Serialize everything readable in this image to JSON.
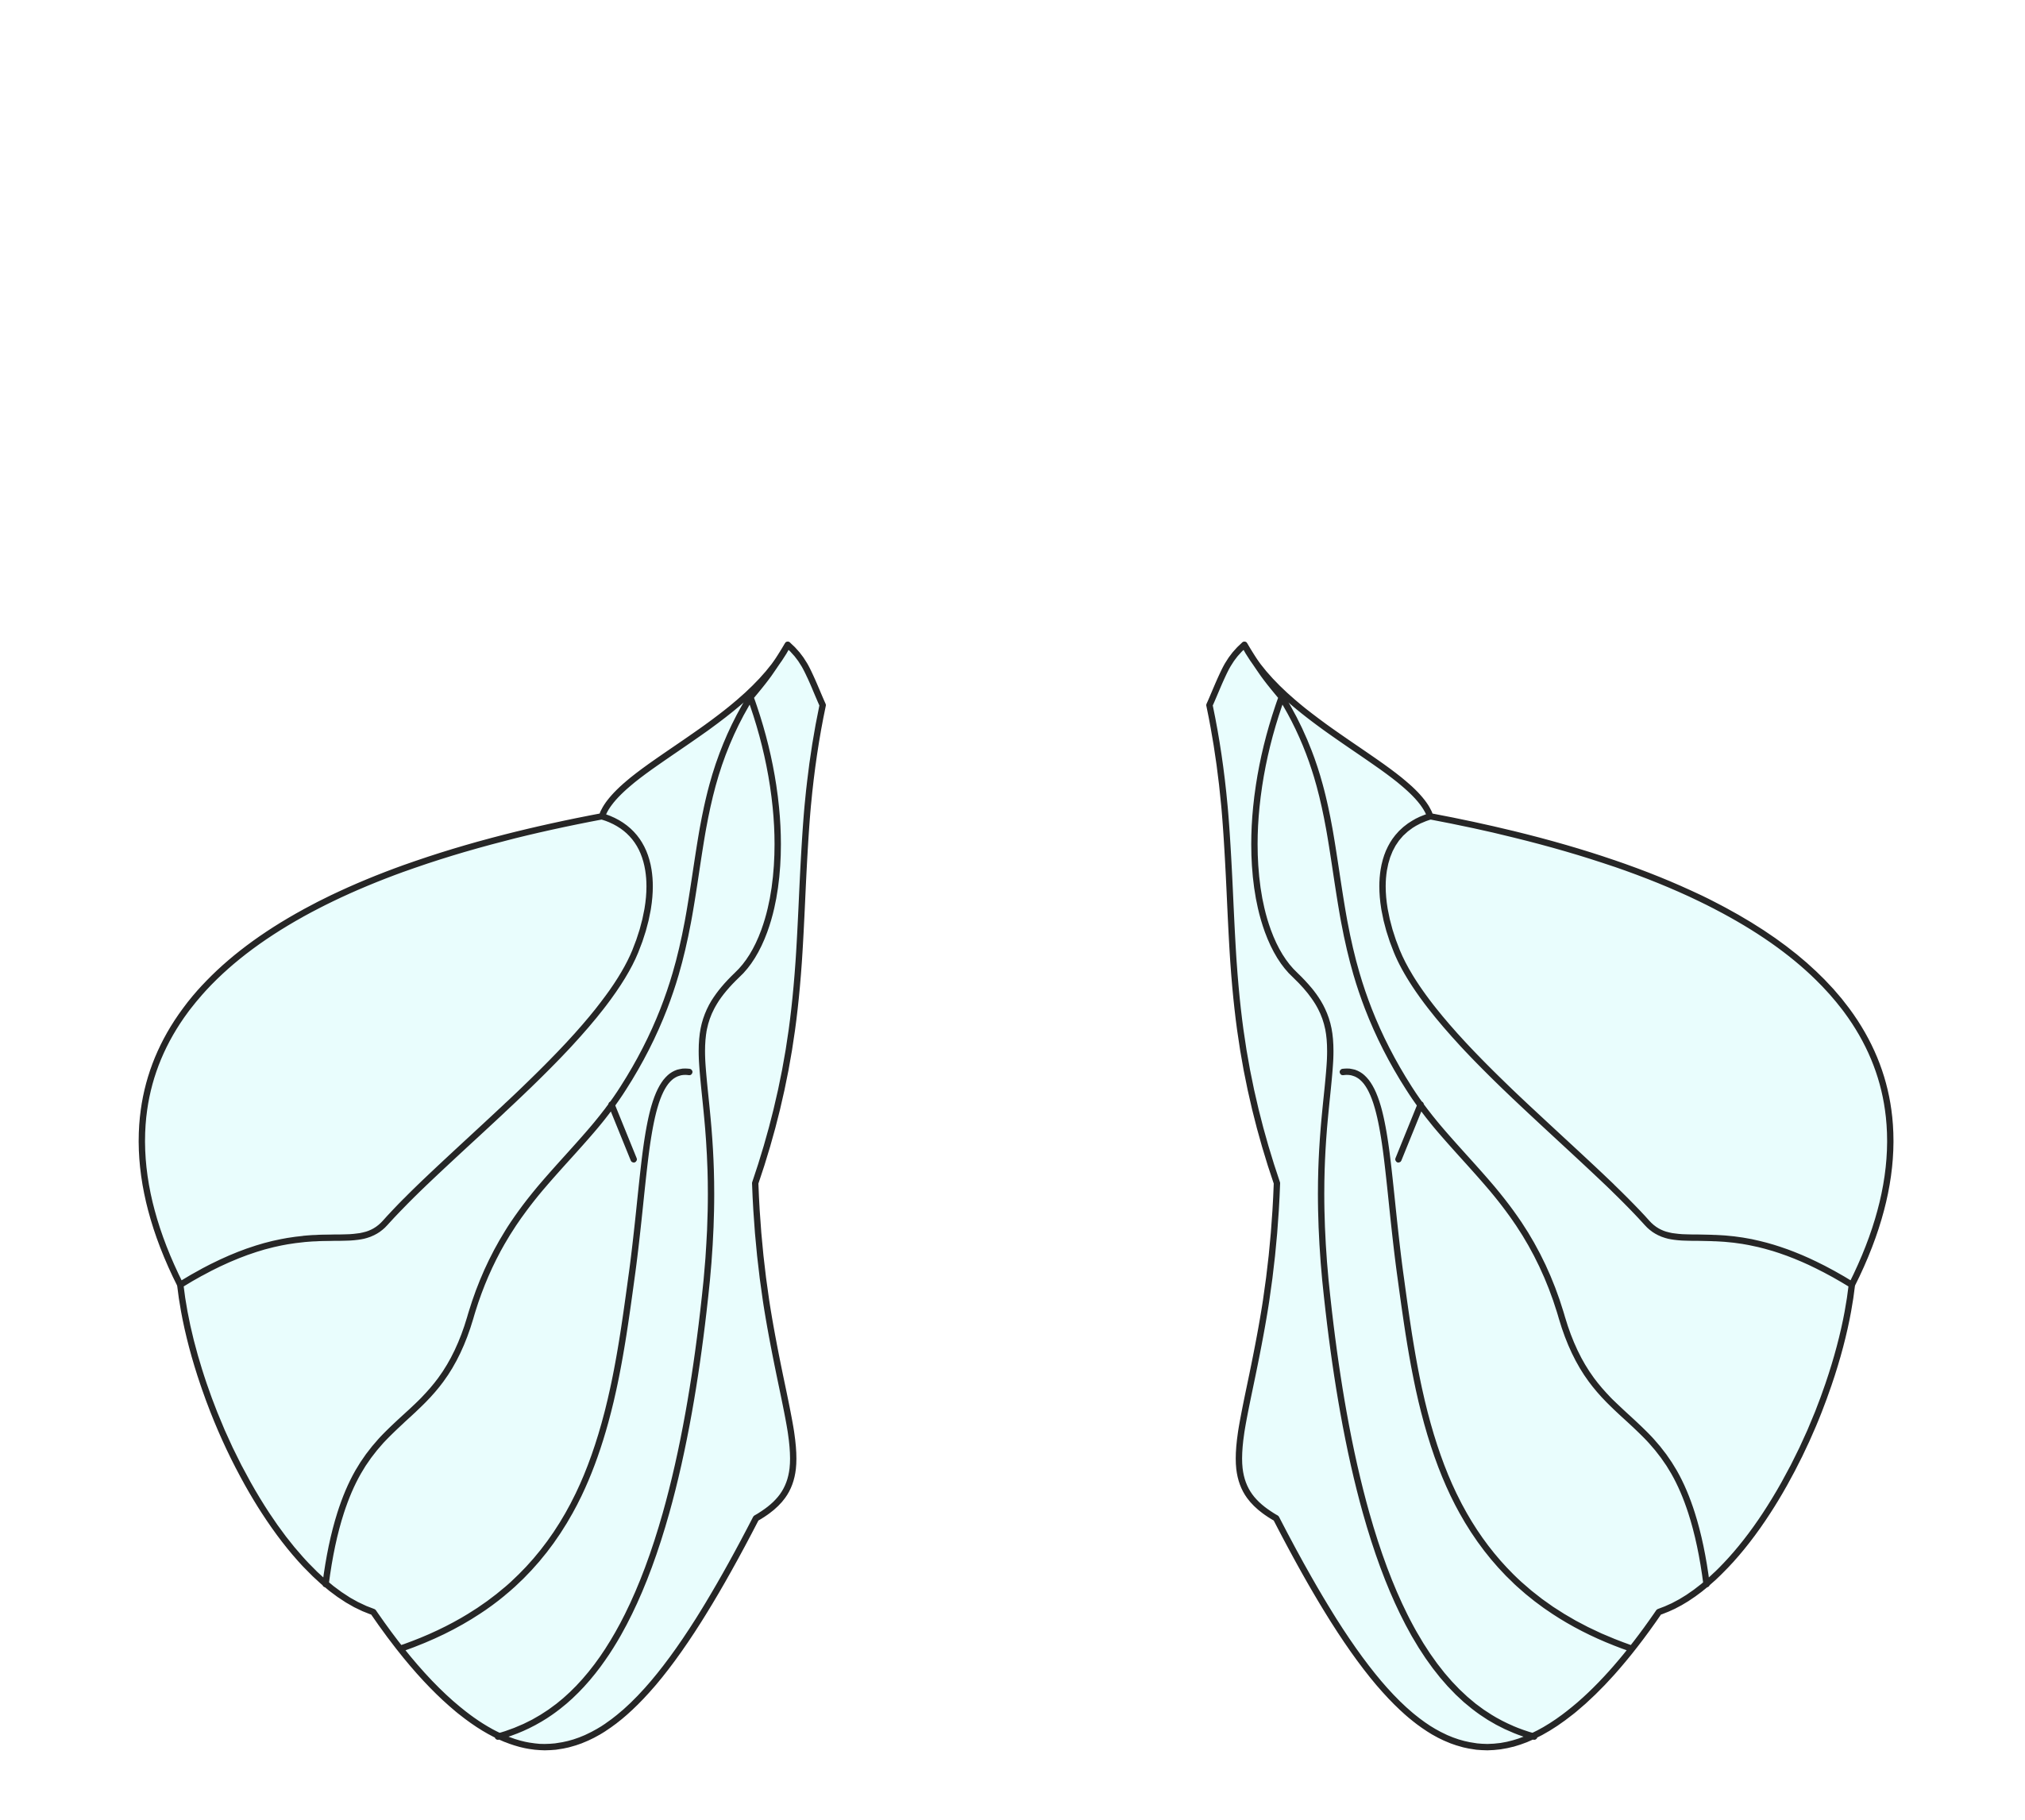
{
  "illustration": {
    "subject": "wing-pair-outline",
    "wings": [
      {
        "side": "left",
        "icon": "left-wing-icon"
      },
      {
        "side": "right",
        "icon": "right-wing-icon"
      }
    ]
  },
  "colors": {
    "background": "#ffffff",
    "wing_fill": "#e9fdfd",
    "outline": "#262626"
  }
}
